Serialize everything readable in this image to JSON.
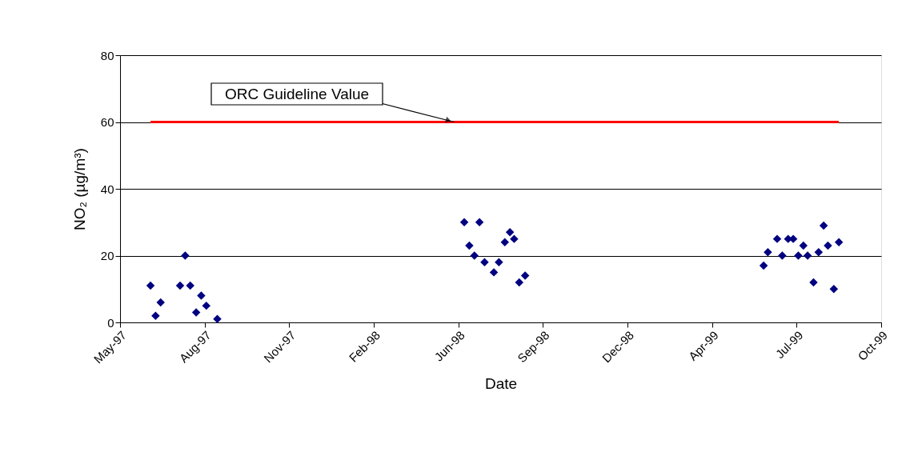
{
  "chart_data": {
    "type": "scatter",
    "xlabel": "Date",
    "ylabel": "NO₂ (µg/m³)",
    "series": [
      {
        "type": "scatter",
        "color": "#000080",
        "marker": "diamond",
        "x": [
          "1997-06-07",
          "1997-06-13",
          "1997-06-19",
          "1997-07-12",
          "1997-07-18",
          "1997-07-24",
          "1997-07-31",
          "1997-08-06",
          "1997-08-12",
          "1997-08-25",
          "1998-06-13",
          "1998-06-19",
          "1998-06-25",
          "1998-07-01",
          "1998-07-07",
          "1998-07-18",
          "1998-07-24",
          "1998-07-31",
          "1998-08-06",
          "1998-08-11",
          "1998-08-17",
          "1998-08-24",
          "1999-06-02",
          "1999-06-07",
          "1999-06-18",
          "1999-06-24",
          "1999-07-01",
          "1999-07-07",
          "1999-07-13",
          "1999-07-19",
          "1999-07-24",
          "1999-07-31",
          "1999-08-06",
          "1999-08-12",
          "1999-08-17",
          "1999-08-24",
          "1999-08-30"
        ],
        "values": [
          11,
          2,
          6,
          11,
          20,
          11,
          3,
          8,
          5,
          1,
          30,
          23,
          20,
          30,
          18,
          15,
          18,
          24,
          27,
          25,
          12,
          14,
          17,
          21,
          25,
          20,
          25,
          25,
          20,
          23,
          20,
          12,
          21,
          29,
          23,
          10,
          24
        ]
      },
      {
        "type": "line",
        "color": "#ff0000",
        "marker": "none",
        "x": [
          "1997-06-07",
          "1999-08-30"
        ],
        "values": [
          60,
          60
        ]
      }
    ],
    "annotations": [
      {
        "text": "ORC Guideline Value",
        "x": "1998-06-01",
        "y": 60
      }
    ],
    "xlim": [
      "1997-05-02",
      "1999-10-19"
    ],
    "xticks": [
      {
        "value": "1997-05-02",
        "label": "May-97"
      },
      {
        "value": "1997-08-10",
        "label": "Aug-97"
      },
      {
        "value": "1997-11-18",
        "label": "Nov-97"
      },
      {
        "value": "1998-02-26",
        "label": "Feb-98"
      },
      {
        "value": "1998-06-06",
        "label": "Jun-98"
      },
      {
        "value": "1998-09-14",
        "label": "Sep-98"
      },
      {
        "value": "1998-12-23",
        "label": "Dec-98"
      },
      {
        "value": "1999-04-02",
        "label": "Apr-99"
      },
      {
        "value": "1999-07-11",
        "label": "Jul-99"
      },
      {
        "value": "1999-10-19",
        "label": "Oct-99"
      }
    ],
    "ylim": [
      0,
      80
    ],
    "yticks": [
      0,
      20,
      40,
      60,
      80
    ],
    "grid": "y",
    "legend": false,
    "line_style": "solid"
  }
}
